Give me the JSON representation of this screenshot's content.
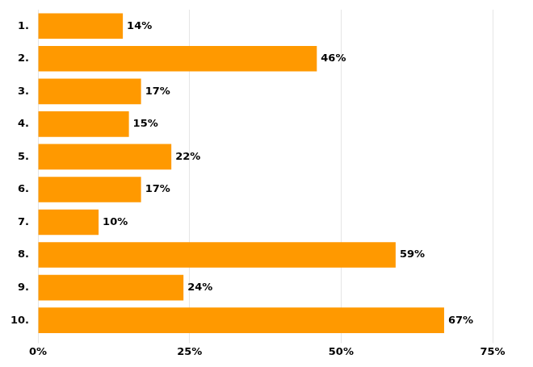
{
  "chart_data": {
    "type": "bar",
    "orientation": "horizontal",
    "categories": [
      "1.",
      "2.",
      "3.",
      "4.",
      "5.",
      "6.",
      "7.",
      "8.",
      "9.",
      "10."
    ],
    "values": [
      14,
      46,
      17,
      15,
      22,
      17,
      10,
      59,
      24,
      67
    ],
    "value_labels": [
      "14%",
      "46%",
      "17%",
      "15%",
      "22%",
      "17%",
      "10%",
      "59%",
      "24%",
      "67%"
    ],
    "color": "#FF9900",
    "xlim": [
      0,
      75
    ],
    "xticks": [
      {
        "value": 0,
        "label": "0%"
      },
      {
        "value": 25,
        "label": "25%"
      },
      {
        "value": 50,
        "label": "50%"
      },
      {
        "value": 75,
        "label": "75%"
      }
    ],
    "grid": true,
    "data_labels": true
  }
}
